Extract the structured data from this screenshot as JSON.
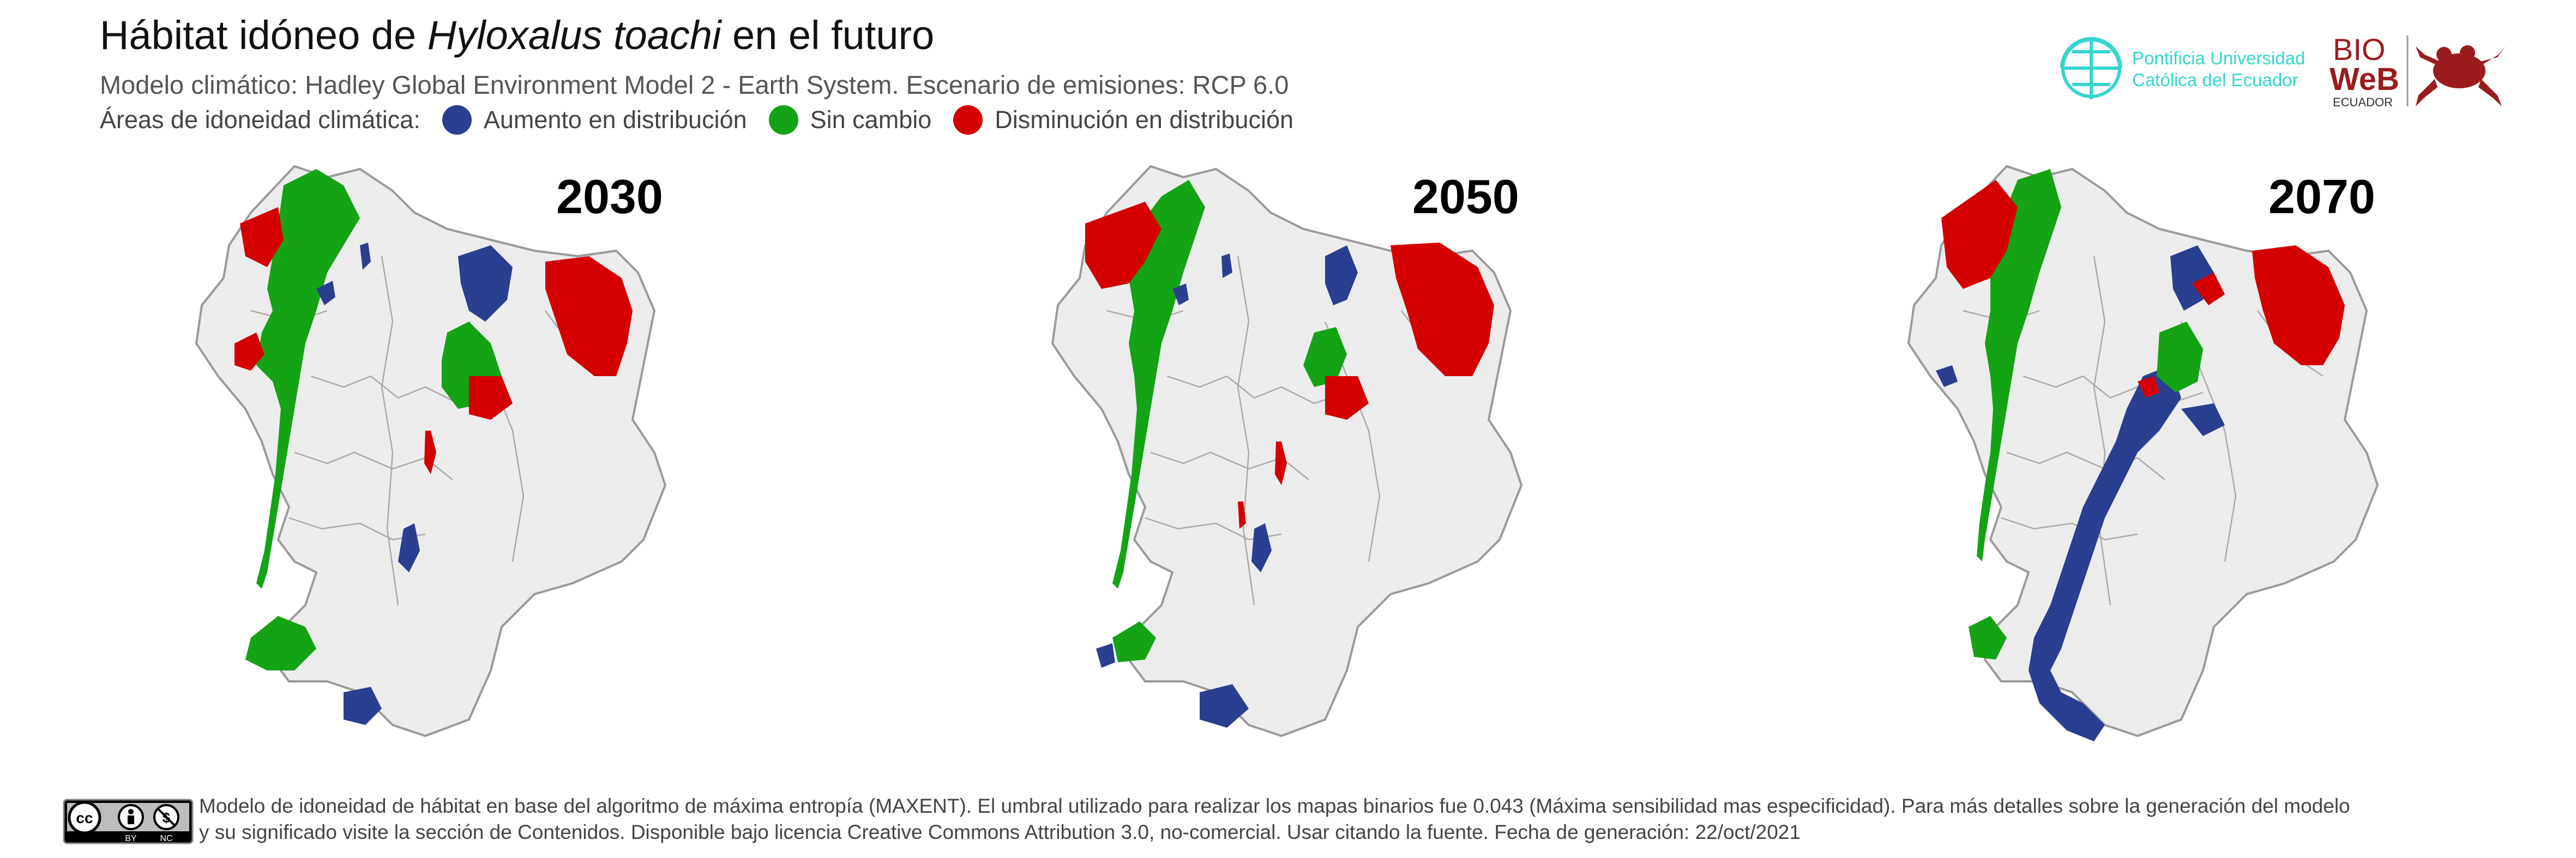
{
  "title": {
    "prefix": "Hábitat idóneo de ",
    "species": "Hyloxalus toachi",
    "suffix": " en el futuro"
  },
  "subtitle": "Modelo climático: Hadley Global Environment Model 2 - Earth System. Escenario de emisiones: RCP 6.0",
  "legend": {
    "label": "Áreas de idoneidad climática:",
    "items": [
      {
        "label": "Aumento en distribución",
        "color": "#2a3f8f"
      },
      {
        "label": "Sin cambio",
        "color": "#14a314"
      },
      {
        "label": "Disminución en distribución",
        "color": "#d40000"
      }
    ]
  },
  "maps": [
    {
      "year": "2030"
    },
    {
      "year": "2050"
    },
    {
      "year": "2070"
    }
  ],
  "logos": {
    "puce_line1": "Pontificia Universidad",
    "puce_line2": "Católica del Ecuador",
    "bioweb_bio": "BIO",
    "bioweb_web": "WeB",
    "bioweb_country": "ECUADOR"
  },
  "footer": {
    "cc_labels": [
      "BY",
      "NC"
    ],
    "text_line1": "Modelo de idoneidad de hábitat en base del algoritmo de máxima entropía (MAXENT). El umbral utilizado para realizar los mapas binarios fue 0.043 (Máxima sensibilidad mas especificidad). Para más detalles sobre la generación del modelo",
    "text_line2": "y su significado visite la sección de Contenidos. Disponible bajo licencia Creative Commons Attribution 3.0, no-comercial. Usar citando la fuente. Fecha de generación: 22/oct/2021"
  },
  "colors": {
    "land": "#ececec",
    "border": "#9a9a9a",
    "increase": "#2a3f8f",
    "nochange": "#14a314",
    "decrease": "#d40000",
    "puce": "#35d5cf",
    "bioweb": "#9b1c1c"
  }
}
